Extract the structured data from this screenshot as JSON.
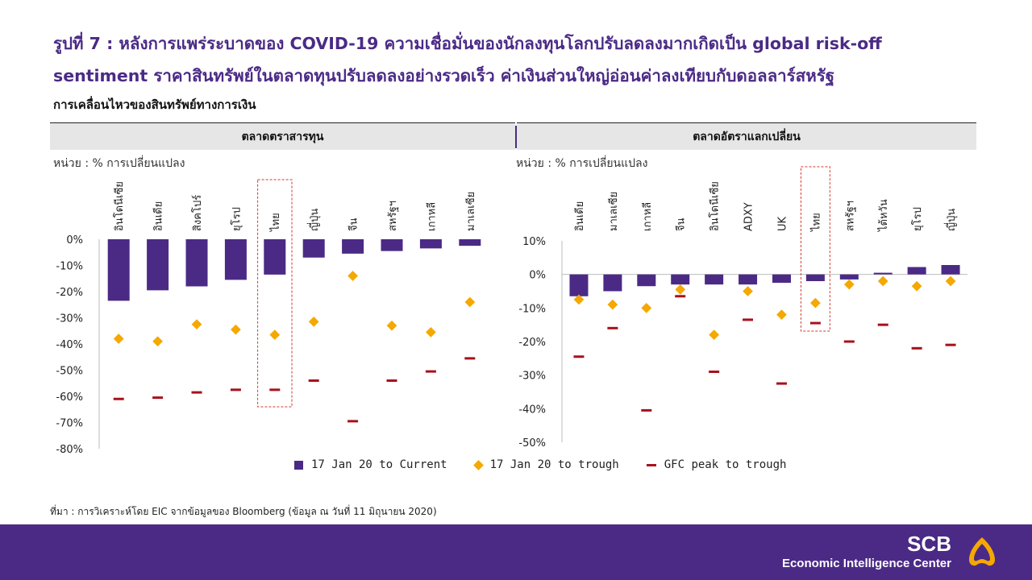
{
  "header": {
    "title": "รูปที่ 7 : หลังการแพร่ระบาดของ COVID-19 ความเชื่อมั่นของนักลงทุนโลกปรับลดลงมากเกิดเป็น global risk-off sentiment ราคาสินทรัพย์ในตลาดทุนปรับลดลงอย่างรวดเร็ว ค่าเงินส่วนใหญ่อ่อนค่าลงเทียบกับดอลลาร์สหรัฐ",
    "subtitle": "การเคลื่อนไหวของสินทรัพย์ทางการเงิน"
  },
  "panels": {
    "left_title": "ตลาดตราสารทุน",
    "right_title": "ตลาดอัตราแลกเปลี่ยน",
    "unit_label": "หน่วย : % การเปลี่ยนแปลง"
  },
  "colors": {
    "bar": "#4b2a86",
    "diamond": "#f5a800",
    "dash": "#a8101c",
    "highlight": "#d8372c"
  },
  "legend": [
    {
      "label": "17 Jan 20 to Current",
      "symbol": "bar"
    },
    {
      "label": "17 Jan 20 to trough",
      "symbol": "diamond"
    },
    {
      "label": "GFC peak to trough",
      "symbol": "dash"
    }
  ],
  "chart_data": [
    {
      "type": "bar",
      "title": "ตลาดตราสารทุน",
      "ylabel": "หน่วย : % การเปลี่ยนแปลง",
      "ylim": [
        -80,
        0
      ],
      "yticks": [
        "0%",
        "-10%",
        "-20%",
        "-30%",
        "-40%",
        "-50%",
        "-60%",
        "-70%",
        "-80%"
      ],
      "highlight_category": "ไทย",
      "categories": [
        "อินโดนีเซีย",
        "อินเดีย",
        "สิงคโปร์",
        "ยุโรป",
        "ไทย",
        "ญี่ปุ่น",
        "จีน",
        "สหรัฐฯ",
        "เกาหลี",
        "มาเลเซีย"
      ],
      "series": [
        {
          "name": "17 Jan 20 to Current",
          "marker": "bar",
          "values": [
            -23.5,
            -19.5,
            -18,
            -15.5,
            -13.5,
            -7,
            -5.5,
            -4.5,
            -3.5,
            -2.5
          ]
        },
        {
          "name": "17 Jan 20 to trough",
          "marker": "diamond",
          "values": [
            -38,
            -39,
            -32.5,
            -34.5,
            -36.5,
            -31.5,
            -14,
            -33,
            -35.5,
            -24
          ]
        },
        {
          "name": "GFC peak to trough",
          "marker": "dash",
          "values": [
            -61,
            -60.5,
            -58.5,
            -57.5,
            -57.5,
            -54,
            -69.5,
            -54,
            -50.5,
            -45.5
          ]
        }
      ]
    },
    {
      "type": "bar",
      "title": "ตลาดอัตราแลกเปลี่ยน",
      "ylabel": "หน่วย : % การเปลี่ยนแปลง",
      "ylim": [
        -50,
        10
      ],
      "yticks": [
        "10%",
        "0%",
        "-10%",
        "-20%",
        "-30%",
        "-40%",
        "-50%"
      ],
      "highlight_category": "ไทย",
      "categories": [
        "อินเดีย",
        "มาเลเซีย",
        "เกาหลี",
        "จีน",
        "อินโดนีเซีย",
        "ADXY",
        "UK",
        "ไทย",
        "สหรัฐฯ",
        "ไต้หวัน",
        "ยุโรป",
        "ญี่ปุ่น"
      ],
      "series": [
        {
          "name": "17 Jan 20 to Current",
          "marker": "bar",
          "values": [
            -6.5,
            -5,
            -3.5,
            -3,
            -3,
            -3,
            -2.5,
            -2,
            -1.5,
            0.5,
            2.2,
            2.8
          ]
        },
        {
          "name": "17 Jan 20 to trough",
          "marker": "diamond",
          "values": [
            -7.5,
            -9,
            -10,
            -4.5,
            -18,
            -5,
            -12,
            -8.5,
            -3,
            -2,
            -3.5,
            -2
          ]
        },
        {
          "name": "GFC peak to trough",
          "marker": "dash",
          "values": [
            -24.5,
            -16,
            -40.5,
            -6.5,
            -29,
            -13.5,
            -32.5,
            -14.5,
            -20,
            -15,
            -22,
            -21
          ]
        }
      ]
    }
  ],
  "source": "ที่มา : การวิเคราะห์โดย EIC จากข้อมูลของ Bloomberg (ข้อมูล ณ วันที่ 11 มิถุนายน 2020)",
  "footer": {
    "brand": "SCB",
    "brand_sub": "Economic Intelligence Center",
    "logo_icon": "scb-bell-icon"
  }
}
